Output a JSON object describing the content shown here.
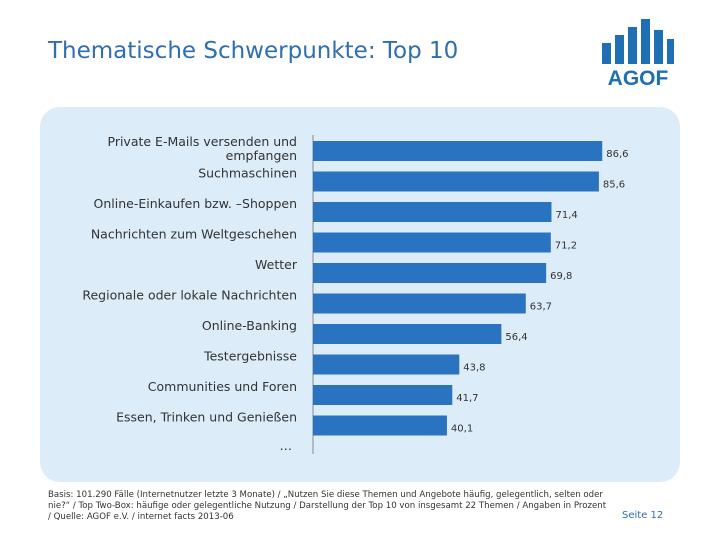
{
  "title": "Thematische Schwerpunkte: Top 10",
  "logo": {
    "text": "AGOF",
    "color": "#1f6fb4"
  },
  "colors": {
    "bar": "#2a73c0",
    "panel": "#dcecf8",
    "title": "#2f6fb0"
  },
  "chart_data": {
    "type": "bar",
    "orientation": "horizontal",
    "categories": [
      "Private E-Mails versenden und empfangen",
      "Suchmaschinen",
      "Online-Einkaufen bzw. –Shoppen",
      "Nachrichten zum Weltgeschehen",
      "Wetter",
      "Regionale oder lokale Nachrichten",
      "Online-Banking",
      "Testergebnisse",
      "Communities und Foren",
      "Essen, Trinken und Genießen"
    ],
    "values": [
      86.6,
      85.6,
      71.4,
      71.2,
      69.8,
      63.7,
      56.4,
      43.8,
      41.7,
      40.1
    ],
    "value_labels": [
      "86,6",
      "85,6",
      "71,4",
      "71,2",
      "69,8",
      "63,7",
      "56,4",
      "43,8",
      "41,7",
      "40,1"
    ],
    "trailing_label": "…",
    "xlim": [
      0,
      100
    ],
    "grid": false,
    "legend": "none"
  },
  "footnote": "Basis: 101.290 Fälle (Internetnutzer letzte 3 Monate) / „Nutzen Sie diese Themen und Angebote häufig, gelegentlich, selten oder nie?“ / Top Two-Box: häufige oder gelegentliche Nutzung / Darstellung der Top 10 von insgesamt 22 Themen / Angaben in Prozent / Quelle: AGOF e.V. / internet facts 2013-06",
  "page_number": "Seite 12"
}
